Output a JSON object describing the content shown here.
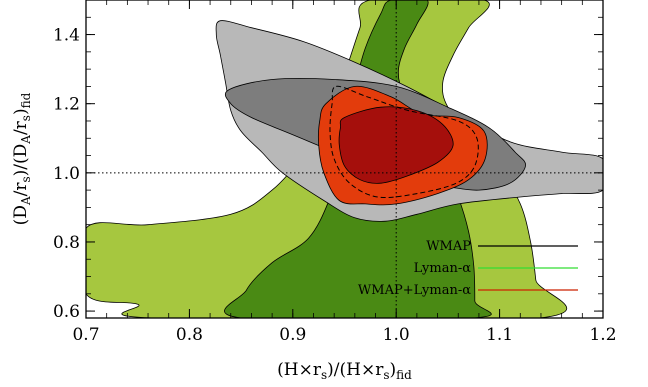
{
  "chart_data": {
    "type": "contour",
    "xlabel": "(H×r_s)/(H×r_s)_fid",
    "ylabel": "(D_A/r_s)/(D_A/r_s)_fid",
    "xlim": [
      0.7,
      1.2
    ],
    "ylim": [
      0.58,
      1.5
    ],
    "x_ticks": [
      "0.7",
      "0.8",
      "0.9",
      "1.0",
      "1.1",
      "1.2"
    ],
    "y_ticks": [
      "0.6",
      "0.8",
      "1.0",
      "1.2",
      "1.4"
    ],
    "reference_lines": {
      "x": 1.0,
      "y": 1.0,
      "style": "dotted"
    },
    "legend": {
      "placement": "bottom-right",
      "entries": [
        {
          "label": "WMAP",
          "color": "#000000"
        },
        {
          "label": "Lyman-α",
          "color": "#33dd33"
        },
        {
          "label": "WMAP+Lyman-α",
          "color": "#cc2200"
        }
      ]
    },
    "series": [
      {
        "name": "Lyman-α",
        "contours": [
          {
            "level": "outer",
            "color": "#a6c73f",
            "points": [
              [
                0.7,
                0.84
              ],
              [
                0.76,
                0.85
              ],
              [
                0.84,
                0.88
              ],
              [
                0.88,
                0.95
              ],
              [
                0.91,
                1.05
              ],
              [
                0.93,
                1.14
              ],
              [
                0.945,
                1.24
              ],
              [
                0.955,
                1.33
              ],
              [
                0.965,
                1.42
              ],
              [
                0.975,
                1.5
              ],
              [
                1.085,
                1.5
              ],
              [
                1.07,
                1.42
              ],
              [
                1.055,
                1.34
              ],
              [
                1.045,
                1.26
              ],
              [
                1.05,
                1.19
              ],
              [
                1.075,
                1.1
              ],
              [
                1.1,
                1.01
              ],
              [
                1.12,
                0.91
              ],
              [
                1.13,
                0.8
              ],
              [
                1.135,
                0.69
              ],
              [
                1.138,
                0.58
              ],
              [
                0.765,
                0.58
              ],
              [
                0.75,
                0.62
              ],
              [
                0.7,
                0.65
              ]
            ]
          },
          {
            "level": "inner",
            "color": "#4a8a14",
            "points": [
              [
                0.85,
                0.58
              ],
              [
                0.855,
                0.66
              ],
              [
                0.88,
                0.74
              ],
              [
                0.915,
                0.81
              ],
              [
                0.935,
                0.92
              ],
              [
                0.945,
                1.03
              ],
              [
                0.952,
                1.14
              ],
              [
                0.96,
                1.25
              ],
              [
                0.97,
                1.36
              ],
              [
                0.985,
                1.46
              ],
              [
                0.995,
                1.5
              ],
              [
                1.03,
                1.5
              ],
              [
                1.02,
                1.43
              ],
              [
                1.008,
                1.36
              ],
              [
                1.002,
                1.29
              ],
              [
                1.008,
                1.22
              ],
              [
                1.025,
                1.13
              ],
              [
                1.045,
                1.03
              ],
              [
                1.06,
                0.93
              ],
              [
                1.07,
                0.83
              ],
              [
                1.075,
                0.73
              ],
              [
                1.076,
                0.63
              ],
              [
                1.075,
                0.58
              ]
            ]
          }
        ]
      },
      {
        "name": "WMAP",
        "contours": [
          {
            "level": "outer",
            "color": "#b8b8b8",
            "points": [
              [
                0.83,
                1.44
              ],
              [
                0.86,
                1.42
              ],
              [
                0.91,
                1.38
              ],
              [
                0.96,
                1.32
              ],
              [
                1.01,
                1.25
              ],
              [
                1.06,
                1.17
              ],
              [
                1.11,
                1.09
              ],
              [
                1.16,
                1.06
              ],
              [
                1.2,
                1.04
              ],
              [
                1.2,
                0.95
              ],
              [
                1.16,
                0.94
              ],
              [
                1.12,
                0.93
              ],
              [
                1.06,
                0.91
              ],
              [
                1.02,
                0.88
              ],
              [
                0.99,
                0.86
              ],
              [
                0.96,
                0.87
              ],
              [
                0.93,
                0.92
              ],
              [
                0.89,
                1.0
              ],
              [
                0.87,
                1.06
              ],
              [
                0.85,
                1.12
              ],
              [
                0.84,
                1.18
              ],
              [
                0.835,
                1.26
              ],
              [
                0.83,
                1.34
              ],
              [
                0.826,
                1.4
              ]
            ]
          },
          {
            "level": "inner",
            "color": "#7d7d7d",
            "points": [
              [
                0.838,
                1.24
              ],
              [
                0.88,
                1.27
              ],
              [
                0.94,
                1.27
              ],
              [
                1.0,
                1.25
              ],
              [
                1.05,
                1.19
              ],
              [
                1.09,
                1.13
              ],
              [
                1.115,
                1.06
              ],
              [
                1.125,
                1.02
              ],
              [
                1.11,
                0.97
              ],
              [
                1.08,
                0.95
              ],
              [
                1.05,
                0.96
              ],
              [
                1.01,
                0.98
              ],
              [
                0.97,
                1.02
              ],
              [
                0.94,
                1.06
              ],
              [
                0.9,
                1.11
              ],
              [
                0.86,
                1.16
              ],
              [
                0.84,
                1.2
              ]
            ]
          }
        ]
      },
      {
        "name": "WMAP+Lyman-α",
        "contours": [
          {
            "level": "outer",
            "color": "#e33c0c",
            "points": [
              [
                0.932,
                1.2
              ],
              [
                0.96,
                1.25
              ],
              [
                0.995,
                1.22
              ],
              [
                1.025,
                1.17
              ],
              [
                1.06,
                1.16
              ],
              [
                1.085,
                1.12
              ],
              [
                1.086,
                1.04
              ],
              [
                1.07,
                0.98
              ],
              [
                1.04,
                0.94
              ],
              [
                1.0,
                0.91
              ],
              [
                0.97,
                0.91
              ],
              [
                0.945,
                0.92
              ],
              [
                0.93,
                1.0
              ],
              [
                0.925,
                1.08
              ],
              [
                0.926,
                1.15
              ]
            ]
          },
          {
            "level": "inner",
            "color": "#a50f0c",
            "points": [
              [
                0.95,
                1.16
              ],
              [
                0.985,
                1.19
              ],
              [
                1.02,
                1.18
              ],
              [
                1.045,
                1.14
              ],
              [
                1.055,
                1.08
              ],
              [
                1.04,
                1.03
              ],
              [
                1.01,
                0.99
              ],
              [
                0.985,
                0.97
              ],
              [
                0.965,
                0.98
              ],
              [
                0.95,
                1.02
              ],
              [
                0.945,
                1.08
              ],
              [
                0.946,
                1.13
              ]
            ]
          }
        ]
      },
      {
        "name": "WMAP dashed",
        "contours": [
          {
            "level": "dashed",
            "color": "#000000",
            "points": [
              [
                0.942,
                1.25
              ],
              [
                0.972,
                1.22
              ],
              [
                1.012,
                1.18
              ],
              [
                1.06,
                1.15
              ],
              [
                1.078,
                1.1
              ],
              [
                1.076,
                1.02
              ],
              [
                1.058,
                0.97
              ],
              [
                1.02,
                0.94
              ],
              [
                0.982,
                0.93
              ],
              [
                0.955,
                0.97
              ],
              [
                0.94,
                1.04
              ],
              [
                0.936,
                1.12
              ],
              [
                0.938,
                1.2
              ]
            ]
          }
        ]
      }
    ]
  }
}
